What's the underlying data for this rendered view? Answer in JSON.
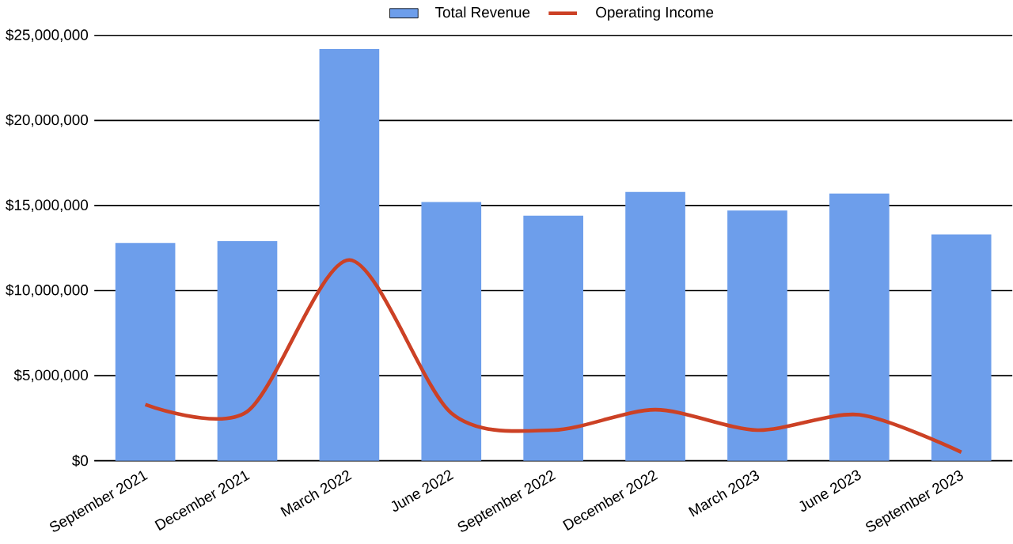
{
  "chart_data": {
    "type": "bar",
    "categories": [
      "September 2021",
      "December 2021",
      "March 2022",
      "June 2022",
      "September 2022",
      "December 2022",
      "March 2023",
      "June 2023",
      "September 2023"
    ],
    "series": [
      {
        "name": "Total Revenue",
        "color": "#6d9eeb",
        "values": [
          12800000,
          12900000,
          24200000,
          15200000,
          14400000,
          15800000,
          14700000,
          15700000,
          13300000
        ]
      },
      {
        "name": "Operating Income",
        "type": "line",
        "color": "#cc4125",
        "values": [
          3300000,
          2900000,
          11800000,
          2800000,
          1800000,
          3000000,
          1800000,
          2700000,
          500000
        ]
      }
    ],
    "ylim": [
      0,
      25000000
    ],
    "yticks": [
      {
        "value": 0,
        "label": "$0"
      },
      {
        "value": 5000000,
        "label": "$5,000,000"
      },
      {
        "value": 10000000,
        "label": "$10,000,000"
      },
      {
        "value": 15000000,
        "label": "$15,000,000"
      },
      {
        "value": 20000000,
        "label": "$20,000,000"
      },
      {
        "value": 25000000,
        "label": "$25,000,000"
      }
    ],
    "grid": "y",
    "legend": "top",
    "marker": "none",
    "line_style": "solid"
  }
}
